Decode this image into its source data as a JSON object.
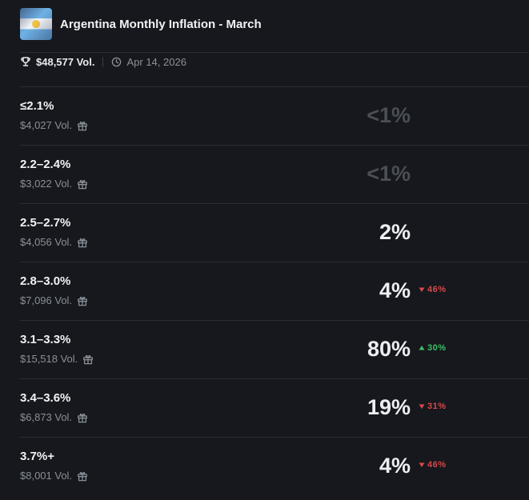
{
  "market": {
    "title": "Argentina Monthly Inflation - March",
    "volume": "$48,577 Vol.",
    "date": "Apr 14, 2026"
  },
  "colors": {
    "background": "#16181d",
    "down": "#d94848",
    "up": "#3cbf68",
    "dim_percent": "#4a4e56"
  },
  "outcomes": [
    {
      "label": "≤2.1%",
      "volume": "$4,027 Vol.",
      "percent": "<1%",
      "change": "",
      "direction": ""
    },
    {
      "label": "2.2–2.4%",
      "volume": "$3,022 Vol.",
      "percent": "<1%",
      "change": "",
      "direction": ""
    },
    {
      "label": "2.5–2.7%",
      "volume": "$4,056 Vol.",
      "percent": "2%",
      "change": "",
      "direction": ""
    },
    {
      "label": "2.8–3.0%",
      "volume": "$7,096 Vol.",
      "percent": "4%",
      "change": "46%",
      "direction": "down"
    },
    {
      "label": "3.1–3.3%",
      "volume": "$15,518 Vol.",
      "percent": "80%",
      "change": "30%",
      "direction": "up"
    },
    {
      "label": "3.4–3.6%",
      "volume": "$6,873 Vol.",
      "percent": "19%",
      "change": "31%",
      "direction": "down"
    },
    {
      "label": "3.7%+",
      "volume": "$8,001 Vol.",
      "percent": "4%",
      "change": "46%",
      "direction": "down"
    }
  ]
}
